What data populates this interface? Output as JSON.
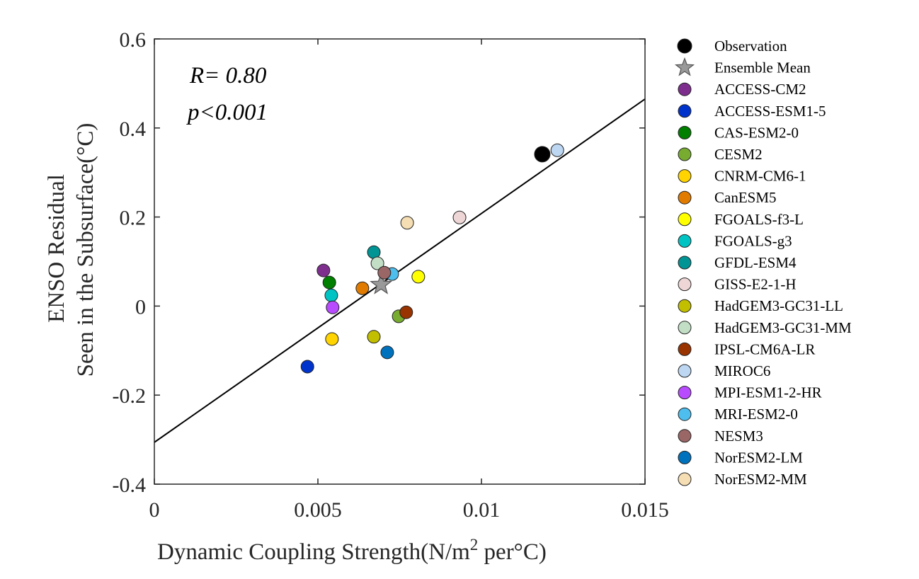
{
  "chart_data": {
    "type": "scatter",
    "title": "",
    "xlabel": "Dynamic Coupling Strength(N/m",
    "xlabel_sup": "2",
    "xlabel_tail": " per°C)",
    "ylabel_lines": [
      "ENSO Residual",
      "Seen in the Subsurface(°C)"
    ],
    "xlim": [
      0,
      0.015
    ],
    "ylim": [
      -0.4,
      0.6
    ],
    "xticks": [
      0,
      0.005,
      0.01,
      0.015
    ],
    "xtick_labels": [
      "0",
      "0.005",
      "0.01",
      "0.015"
    ],
    "yticks": [
      -0.4,
      -0.2,
      0,
      0.2,
      0.4,
      0.6
    ],
    "ytick_labels": [
      "-0.4",
      "-0.2",
      "0",
      "0.2",
      "0.4",
      "0.6"
    ],
    "grid": false,
    "legend_position": "outside-right",
    "annotations": [
      "R= 0.80",
      "p<0.001"
    ],
    "regression_line": {
      "x": [
        0,
        0.015
      ],
      "y": [
        -0.306,
        0.465
      ]
    },
    "series": [
      {
        "name": "Observation",
        "marker": "circle-large",
        "color": "#000000",
        "x": 0.01186,
        "y": 0.341
      },
      {
        "name": "Ensemble Mean",
        "marker": "star",
        "color": "#999999",
        "x": 0.00693,
        "y": 0.048
      },
      {
        "name": "ACCESS-CM2",
        "marker": "circle",
        "color": "#7E2F8E",
        "x": 0.00517,
        "y": 0.08
      },
      {
        "name": "ACCESS-ESM1-5",
        "marker": "circle",
        "color": "#0033CC",
        "x": 0.00468,
        "y": -0.136
      },
      {
        "name": "CAS-ESM2-0",
        "marker": "circle",
        "color": "#007F00",
        "x": 0.00535,
        "y": 0.053
      },
      {
        "name": "CESM2",
        "marker": "circle",
        "color": "#77AC30",
        "x": 0.00747,
        "y": -0.023
      },
      {
        "name": "CNRM-CM6-1",
        "marker": "circle",
        "color": "#FFD400",
        "x": 0.00543,
        "y": -0.074
      },
      {
        "name": "CanESM5",
        "marker": "circle",
        "color": "#E07B00",
        "x": 0.00636,
        "y": 0.04
      },
      {
        "name": "FGOALS-f3-L",
        "marker": "circle",
        "color": "#FFFF00",
        "x": 0.00807,
        "y": 0.066
      },
      {
        "name": "FGOALS-g3",
        "marker": "circle",
        "color": "#00C4C4",
        "x": 0.00541,
        "y": 0.024
      },
      {
        "name": "GFDL-ESM4",
        "marker": "circle",
        "color": "#009494",
        "x": 0.00671,
        "y": 0.121
      },
      {
        "name": "GISS-E2-1-H",
        "marker": "circle",
        "color": "#EFD6D6",
        "x": 0.00933,
        "y": 0.199
      },
      {
        "name": "HadGEM3-GC31-LL",
        "marker": "circle",
        "color": "#C2BE00",
        "x": 0.00671,
        "y": -0.069
      },
      {
        "name": "HadGEM3-GC31-MM",
        "marker": "circle",
        "color": "#C2DFC6",
        "x": 0.00682,
        "y": 0.096
      },
      {
        "name": "IPSL-CM6A-LR",
        "marker": "circle",
        "color": "#993300",
        "x": 0.0077,
        "y": -0.014
      },
      {
        "name": "MIROC6",
        "marker": "circle",
        "color": "#BDD7F2",
        "x": 0.01232,
        "y": 0.35
      },
      {
        "name": "MPI-ESM1-2-HR",
        "marker": "circle",
        "color": "#B94BFF",
        "x": 0.00545,
        "y": -0.003
      },
      {
        "name": "MRI-ESM2-0",
        "marker": "circle",
        "color": "#4DBEEE",
        "x": 0.00727,
        "y": 0.072
      },
      {
        "name": "NESM3",
        "marker": "circle",
        "color": "#9A6666",
        "x": 0.00703,
        "y": 0.075
      },
      {
        "name": "NorESM2-LM",
        "marker": "circle",
        "color": "#0072BD",
        "x": 0.00712,
        "y": -0.104
      },
      {
        "name": "NorESM2-MM",
        "marker": "circle",
        "color": "#F5DEB3",
        "x": 0.00773,
        "y": 0.187
      }
    ]
  }
}
